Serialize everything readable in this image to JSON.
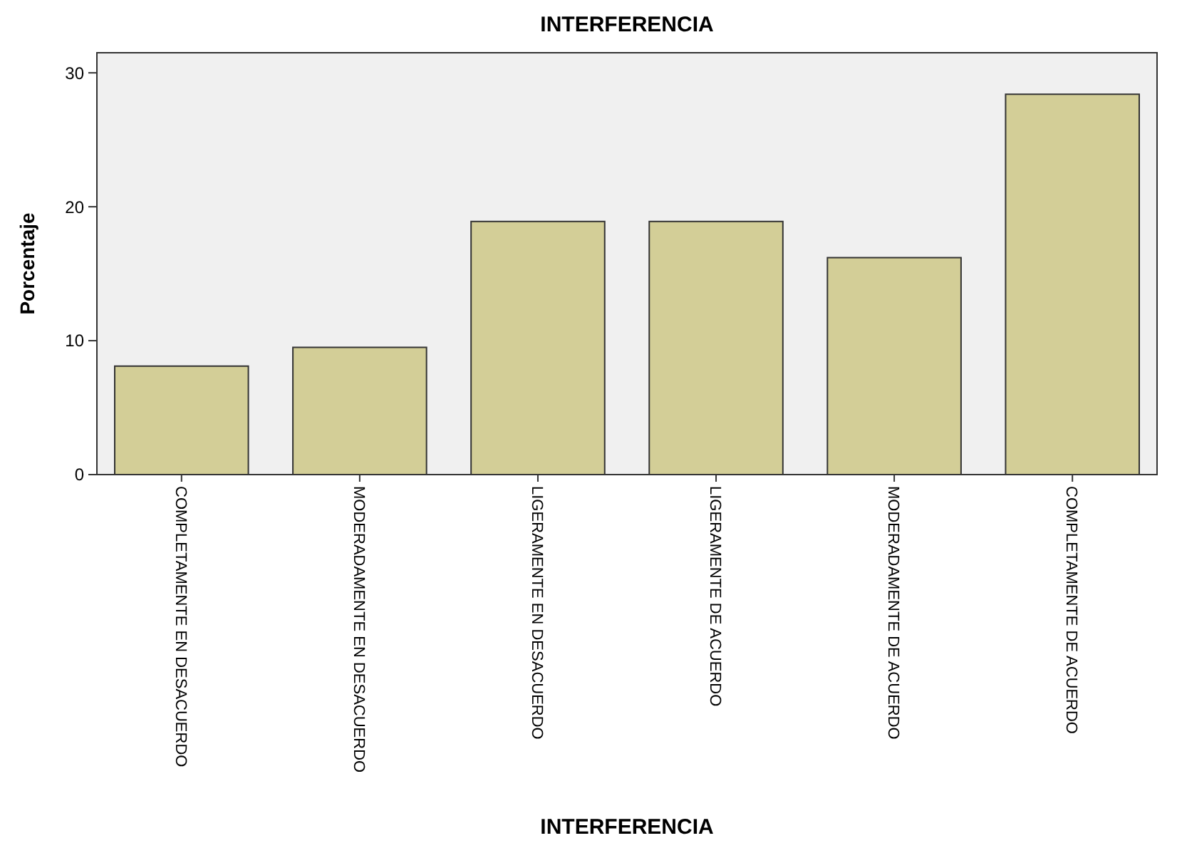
{
  "chart_data": {
    "type": "bar",
    "title": "INTERFERENCIA",
    "xlabel": "INTERFERENCIA",
    "ylabel": "Porcentaje",
    "categories": [
      "COMPLETAMENTE EN DESACUERDO",
      "MODERADAMENTE EN DESACUERDO",
      "LIGERAMENTE EN DESACUERDO",
      "LIGERAMENTE DE ACUERDO",
      "MODERADAMENTE DE ACUERDO",
      "COMPLETAMENTE DE ACUERDO"
    ],
    "values": [
      8.1,
      9.5,
      18.9,
      18.9,
      16.2,
      28.4
    ],
    "color": "#d3ce97",
    "ylim": [
      0,
      31.5
    ],
    "yticks": [
      0,
      10,
      20,
      30
    ],
    "grid": false
  }
}
